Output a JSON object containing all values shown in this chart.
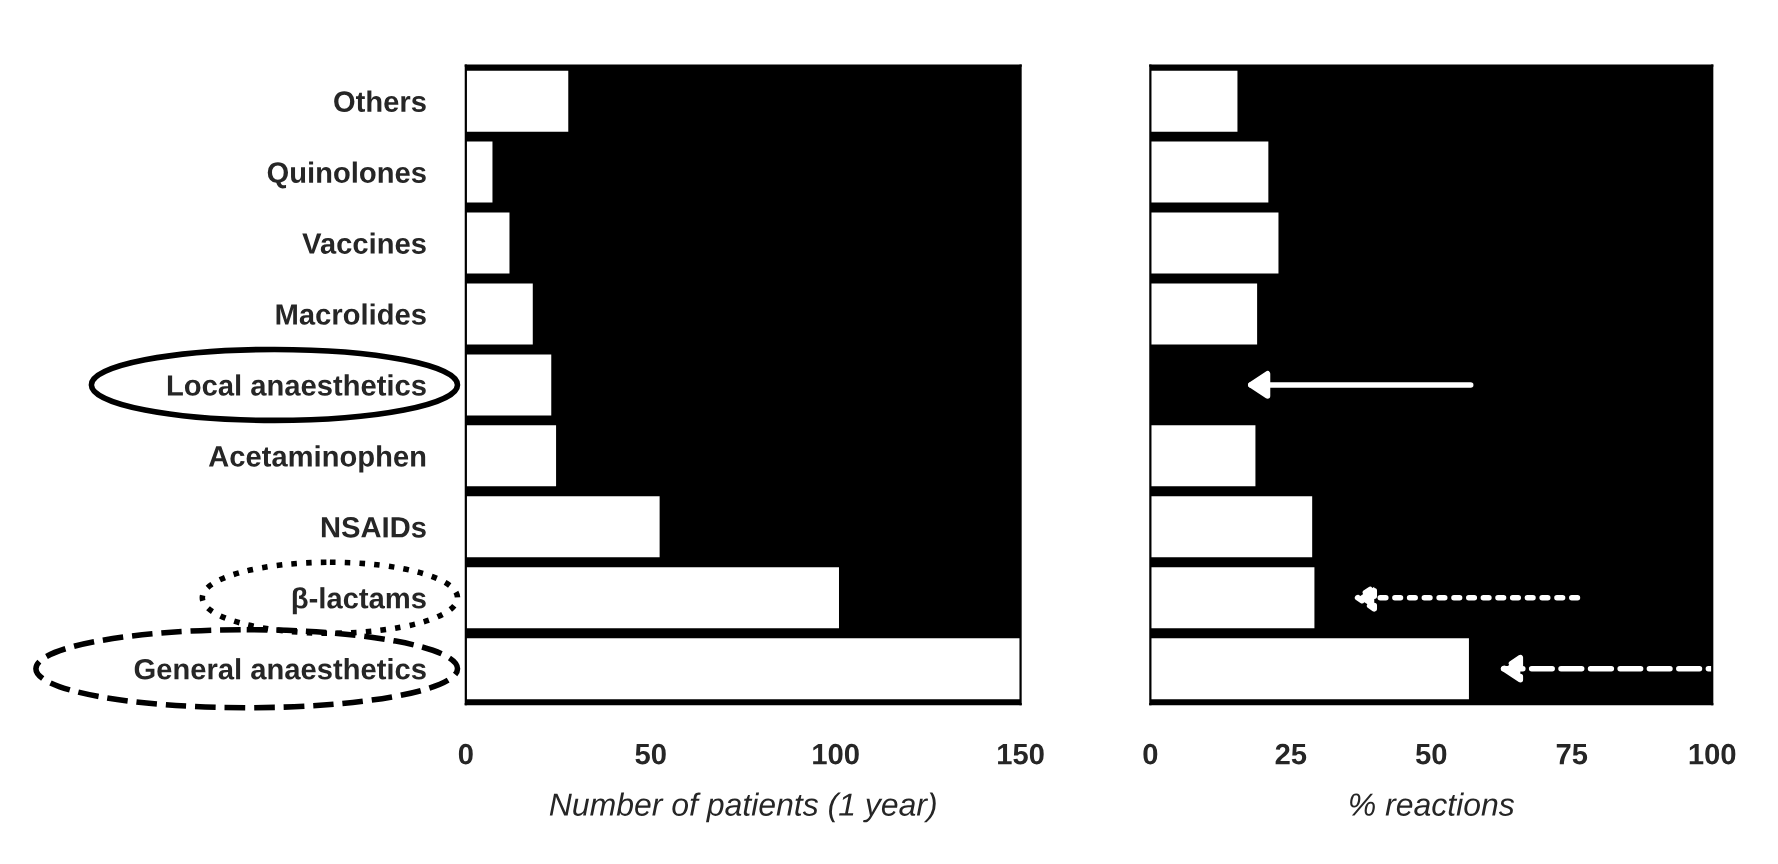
{
  "chart_data": [
    {
      "type": "bar",
      "orientation": "horizontal",
      "xlabel": "Number of patients (1 year)",
      "categories": [
        "Others",
        "Quinolones",
        "Vaccines",
        "Macrolides",
        "Local anaesthetics",
        "Acetaminophen",
        "NSAIDs",
        "β-lactams",
        "General anaesthetics"
      ],
      "series": [
        {
          "color": "#ffffff",
          "values": [
            27.7,
            7.2,
            11.8,
            18.1,
            23.1,
            24.4,
            52.4,
            100.9,
            150
          ]
        }
      ],
      "xlim": [
        0,
        150
      ],
      "xticks": [
        0,
        50,
        100,
        150
      ]
    },
    {
      "type": "bar",
      "orientation": "horizontal",
      "xlabel": "% reactions",
      "tick_labels": "x",
      "categories": [
        null,
        null,
        null,
        null,
        null,
        null,
        null,
        null,
        null
      ],
      "series": [
        {
          "color": "#ffffff",
          "values": [
            15.5,
            21,
            22.8,
            19,
            0,
            18.7,
            28.8,
            29.2,
            56.7
          ]
        }
      ],
      "xlim": [
        0,
        100
      ],
      "xticks": [
        0,
        25,
        50,
        75,
        100
      ]
    }
  ]
}
